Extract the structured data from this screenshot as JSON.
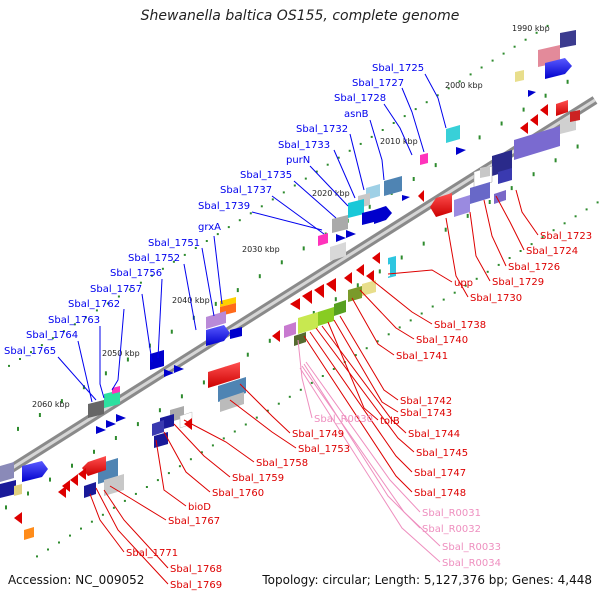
{
  "title": "Shewanella baltica OS155, complete genome",
  "footer": {
    "accession": "Accession: NC_009052",
    "summary": "Topology: circular; Length: 5,127,376 bp; Genes: 4,448"
  },
  "colors": {
    "forward_label": "#0000ee",
    "reverse_label": "#dd0000",
    "rna_label": "#ee8fbf",
    "backbone": "#777777",
    "ticks": "#2e8b2e"
  },
  "kbp_labels": [
    "1990 kbp",
    "2000 kbp",
    "2010 kbp",
    "2020 kbp",
    "2030 kbp",
    "2040 kbp",
    "2050 kbp",
    "2060 kbp"
  ],
  "forward_genes": [
    "Sbal_1725",
    "Sbal_1727",
    "Sbal_1728",
    "asnB",
    "Sbal_1732",
    "Sbal_1733",
    "purN",
    "Sbal_1735",
    "Sbal_1737",
    "Sbal_1739",
    "grxA",
    "Sbal_1751",
    "Sbal_1752",
    "Sbal_1756",
    "Sbal_1757",
    "Sbal_1762",
    "Sbal_1763",
    "Sbal_1764",
    "Sbal_1765"
  ],
  "reverse_genes": [
    "Sbal_1723",
    "Sbal_1724",
    "Sbal_1726",
    "Sbal_1729",
    "Sbal_1730",
    "upp",
    "Sbal_1738",
    "Sbal_1740",
    "Sbal_1741",
    "Sbal_1742",
    "Sbal_1743",
    "tolB",
    "Sbal_1744",
    "Sbal_1745",
    "Sbal_1747",
    "Sbal_1748",
    "Sbal_1749",
    "Sbal_1753",
    "Sbal_1758",
    "Sbal_1759",
    "Sbal_1760",
    "bioD",
    "Sbal_1767",
    "Sbal_1771",
    "Sbal_1768",
    "Sbal_1769"
  ],
  "rna_genes": [
    "Sbal_R0030",
    "Sbal_R0031",
    "Sbal_R0032",
    "Sbal_R0033",
    "Sbal_R0034"
  ]
}
